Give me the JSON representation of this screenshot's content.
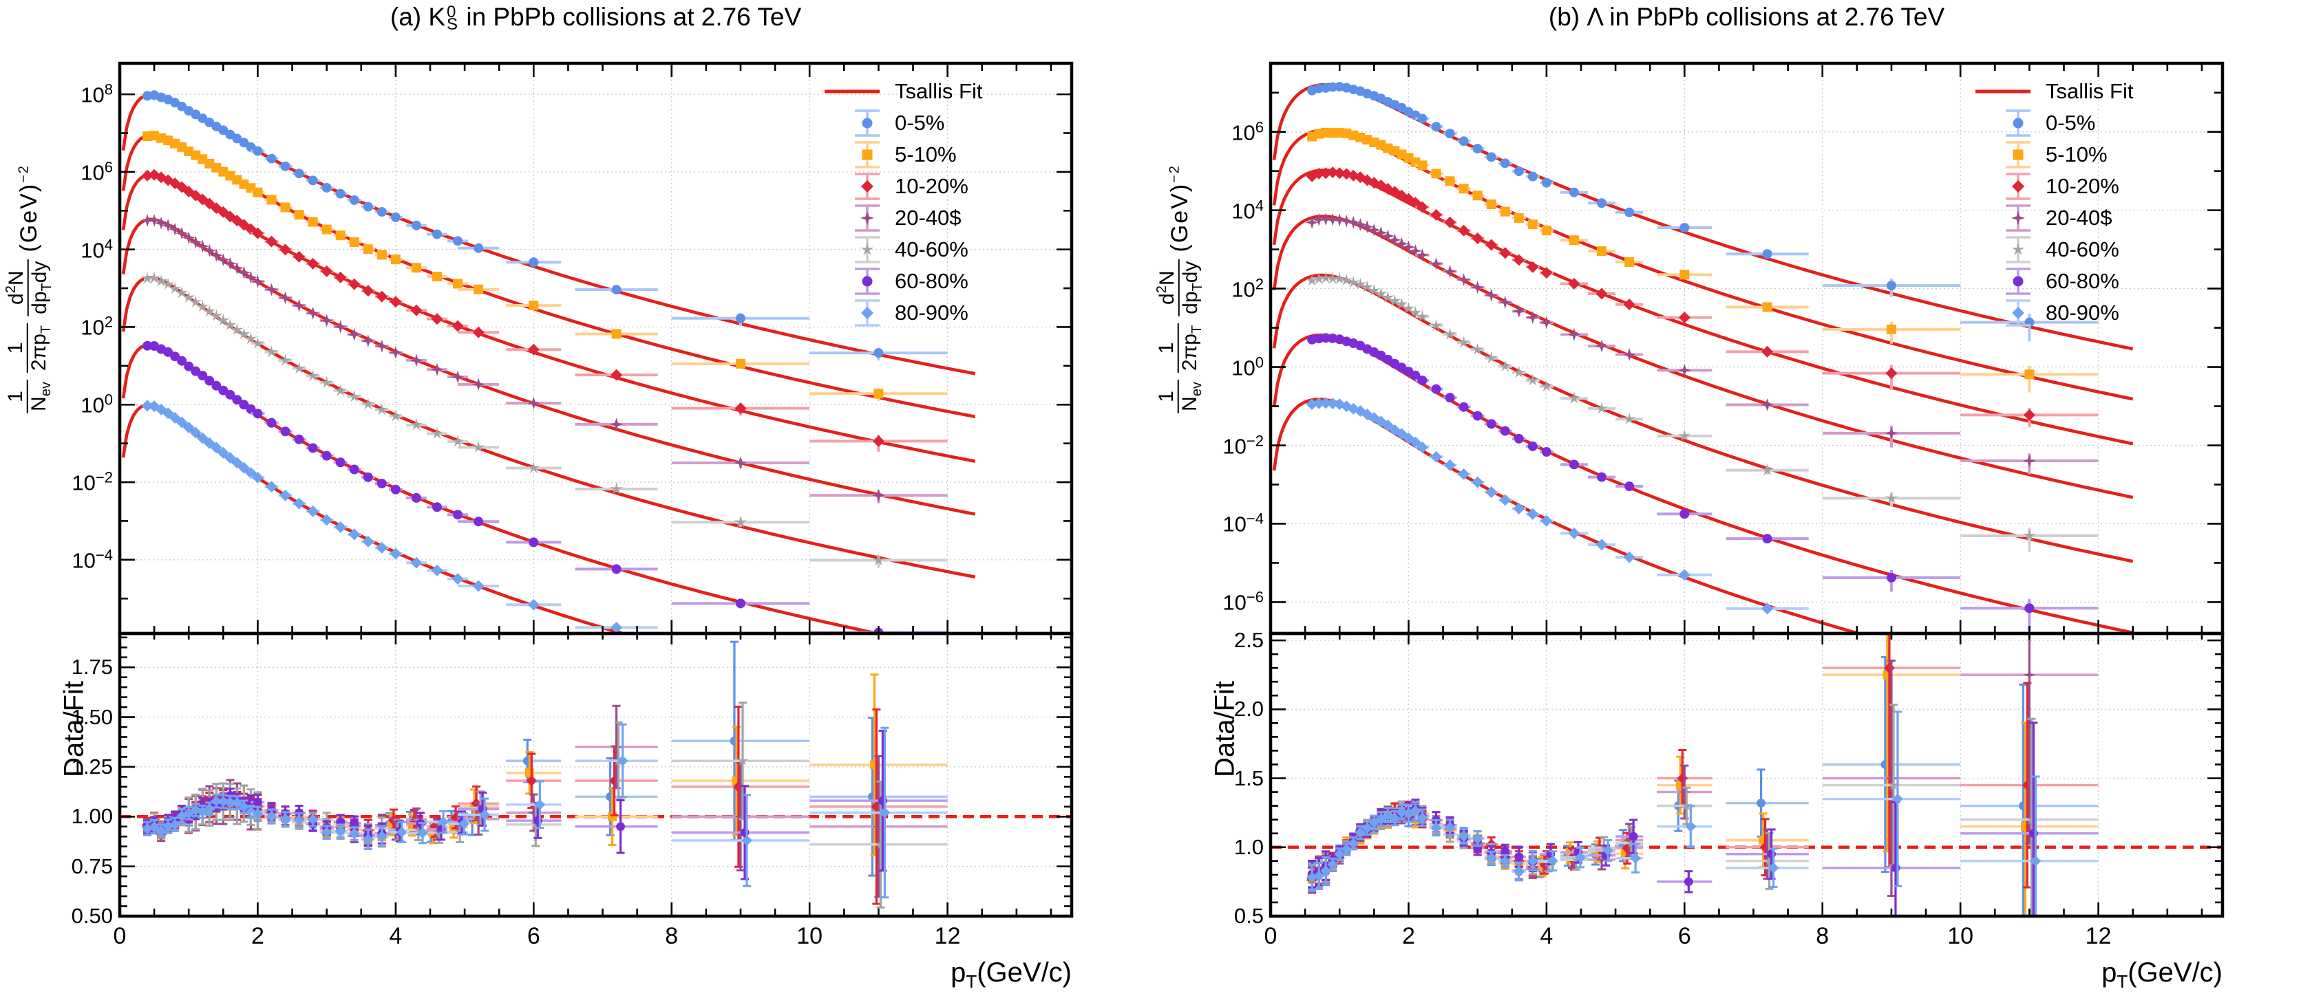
{
  "figure": {
    "background": "#ffffff",
    "fit_color": "#e3211b",
    "grid_color": "#c9c9c9",
    "axis_color": "#000000",
    "ref_line_color": "#e3211b"
  },
  "chart_data": [
    {
      "id": "a",
      "type": "scatter+line",
      "title": {
        "prefix": "(a) K",
        "stack_sup": "0",
        "stack_sub": "S",
        "suffix": " in PbPb collisions at 2.76 TeV"
      },
      "xlabel": {
        "base": "p",
        "sub": "T",
        "suffix": "(GeV/c)"
      },
      "ylabel_tokens": {
        "f1n": "1",
        "f1d": "N",
        "f1dsub": "ev",
        "f2n": "1",
        "f2d": "2πp",
        "f2dsub": "T",
        "f3n": "d",
        "f3nsup": "2",
        "f3nb": "N",
        "f3d": "dp",
        "f3dsub": "T",
        "f3db": "dy",
        "unit": "(GeV)",
        "unitsup": "−2"
      },
      "ratio_ylabel": "Data/Fit",
      "legend_fit_label": "Tsallis Fit",
      "xlim": [
        0,
        13.8
      ],
      "x_major_ticks": [
        0,
        2,
        4,
        6,
        8,
        10,
        12
      ],
      "x_minor_step": 0.5,
      "y_main_log_range": [
        -5.9,
        8.8
      ],
      "y_main_labeled_decades": [
        8,
        6,
        4,
        2,
        0,
        -2,
        -4
      ],
      "y_main_exponent_text": [
        "8",
        "6",
        "4",
        "2",
        "0",
        "−2",
        "−4"
      ],
      "y_ratio": {
        "min": 0.5,
        "max": 1.92,
        "ticks": [
          0.5,
          0.75,
          1.0,
          1.25,
          1.5,
          1.75
        ],
        "tick_labels": [
          "0.50",
          "0.75",
          "1.00",
          "1.25",
          "1.50",
          "1.75"
        ],
        "minor_step": 0.05,
        "ref": 1.0
      },
      "particle_mass": 0.497,
      "rise_scale": 0.42,
      "fit_x_end": 12.4,
      "pt_bins": [
        0.4,
        0.5,
        0.6,
        0.7,
        0.8,
        0.9,
        1.0,
        1.1,
        1.2,
        1.3,
        1.4,
        1.5,
        1.6,
        1.7,
        1.8,
        1.9,
        2.0,
        2.2,
        2.4,
        2.6,
        2.8,
        3.0,
        3.2,
        3.4,
        3.6,
        3.8,
        4.0,
        4.3,
        4.6,
        4.9,
        5.2,
        6.0,
        7.2,
        9.0,
        11.0
      ],
      "pt_halfwidths": [
        0.05,
        0.05,
        0.05,
        0.05,
        0.05,
        0.05,
        0.05,
        0.05,
        0.05,
        0.05,
        0.05,
        0.05,
        0.05,
        0.05,
        0.05,
        0.05,
        0.1,
        0.1,
        0.1,
        0.1,
        0.1,
        0.1,
        0.1,
        0.1,
        0.1,
        0.1,
        0.1,
        0.15,
        0.15,
        0.15,
        0.3,
        0.4,
        0.6,
        1.0,
        1.0
      ],
      "ratio_trend": [
        [
          0.4,
          0.95
        ],
        [
          0.5,
          0.97
        ],
        [
          0.6,
          0.93
        ],
        [
          0.7,
          0.96
        ],
        [
          0.8,
          0.98
        ],
        [
          0.9,
          1.0
        ],
        [
          1.0,
          1.01
        ],
        [
          1.1,
          1.03
        ],
        [
          1.2,
          1.05
        ],
        [
          1.3,
          1.06
        ],
        [
          1.4,
          1.07
        ],
        [
          1.5,
          1.08
        ],
        [
          1.6,
          1.08
        ],
        [
          1.7,
          1.07
        ],
        [
          1.8,
          1.06
        ],
        [
          1.9,
          1.05
        ],
        [
          2.0,
          1.04
        ],
        [
          2.2,
          1.03
        ],
        [
          2.4,
          1.0
        ],
        [
          2.6,
          0.99
        ],
        [
          2.8,
          0.97
        ],
        [
          3.0,
          0.96
        ],
        [
          3.2,
          0.95
        ],
        [
          3.4,
          0.94
        ],
        [
          3.6,
          0.92
        ],
        [
          3.8,
          0.93
        ],
        [
          4.0,
          0.95
        ],
        [
          4.3,
          0.96
        ],
        [
          4.6,
          0.95
        ],
        [
          4.9,
          0.97
        ],
        [
          5.2,
          1.02
        ]
      ],
      "hi_pt_bins": [
        6.0,
        7.2,
        9.0,
        11.0
      ],
      "hi_pt_rel_err": [
        0.1,
        0.15,
        0.28,
        0.38
      ],
      "series": [
        {
          "label": "0-5%",
          "color": "#5c90e8",
          "ecolor": "#a9c6f5",
          "marker": "circle",
          "peak": 100000000.0,
          "T": 0.3,
          "n": 12.0,
          "seed": 11,
          "ratio_hi": [
            1.28,
            1.1,
            1.38,
            1.1
          ]
        },
        {
          "label": "5-10%",
          "color": "#ffa613",
          "ecolor": "#ffd08c",
          "marker": "square",
          "peak": 9000000.0,
          "T": 0.295,
          "n": 12.0,
          "seed": 22,
          "ratio_hi": [
            1.22,
            1.0,
            1.18,
            1.26
          ]
        },
        {
          "label": "10-20%",
          "color": "#e02438",
          "ecolor": "#f2a0aa",
          "marker": "diamond",
          "peak": 860000.0,
          "T": 0.285,
          "n": 12.0,
          "seed": 33,
          "ratio_hi": [
            1.18,
            1.18,
            1.15,
            1.05
          ]
        },
        {
          "label": "20-40$",
          "color": "#9c4a8b",
          "ecolor": "#d29bc9",
          "marker": "star4",
          "peak": 60000.0,
          "T": 0.27,
          "n": 12.0,
          "seed": 44,
          "ratio_hi": [
            1.02,
            1.35,
            1.0,
            0.95
          ]
        },
        {
          "label": "40-60%",
          "color": "#a3a3a3",
          "ecolor": "#cfcfcf",
          "marker": "star5",
          "peak": 1900.0,
          "T": 0.25,
          "n": 11.5,
          "seed": 55,
          "ratio_hi": [
            0.96,
            1.28,
            1.28,
            0.86
          ]
        },
        {
          "label": "60-80%",
          "color": "#7d2bd6",
          "ecolor": "#bd9be8",
          "marker": "circle",
          "peak": 35.0,
          "T": 0.235,
          "n": 11.5,
          "seed": 66,
          "ratio_hi": [
            0.98,
            0.95,
            0.92,
            1.08
          ]
        },
        {
          "label": "80-90%",
          "color": "#6fa3f2",
          "ecolor": "#b3cff7",
          "marker": "diamond",
          "peak": 1.0,
          "T": 0.22,
          "n": 11.0,
          "seed": 77,
          "ratio_hi": [
            1.06,
            1.28,
            0.88,
            1.02
          ]
        }
      ]
    },
    {
      "id": "b",
      "type": "scatter+line",
      "title": {
        "prefix": "(b) Λ",
        "stack_sup": "",
        "stack_sub": "",
        "suffix": " in PbPb collisions at 2.76 TeV"
      },
      "xlabel": {
        "base": "p",
        "sub": "T",
        "suffix": "(GeV/c)"
      },
      "ylabel_tokens": {
        "f1n": "1",
        "f1d": "N",
        "f1dsub": "ev",
        "f2n": "1",
        "f2d": "2πp",
        "f2dsub": "T",
        "f3n": "d",
        "f3nsup": "2",
        "f3nb": "N",
        "f3d": "dp",
        "f3dsub": "T",
        "f3db": "dy",
        "unit": "(GeV)",
        "unitsup": "−2"
      },
      "ratio_ylabel": "Data/Fit",
      "legend_fit_label": "Tsallis Fit",
      "xlim": [
        0,
        13.8
      ],
      "x_major_ticks": [
        0,
        2,
        4,
        6,
        8,
        10,
        12
      ],
      "x_minor_step": 0.5,
      "y_main_log_range": [
        -6.8,
        7.75
      ],
      "y_main_labeled_decades": [
        6,
        4,
        2,
        0,
        -2,
        -4,
        -6
      ],
      "y_main_exponent_text": [
        "6",
        "4",
        "2",
        "0",
        "−2",
        "−4",
        "−6"
      ],
      "y_ratio": {
        "min": 0.5,
        "max": 2.55,
        "ticks": [
          0.5,
          1.0,
          1.5,
          2.0,
          2.5
        ],
        "tick_labels": [
          "0.5",
          "1.0",
          "1.5",
          "2.0",
          "2.5"
        ],
        "minor_step": 0.1,
        "ref": 1.0
      },
      "particle_mass": 1.116,
      "rise_scale": 0.9,
      "fit_x_end": 12.5,
      "pt_bins": [
        0.6,
        0.7,
        0.8,
        0.9,
        1.0,
        1.1,
        1.2,
        1.3,
        1.4,
        1.5,
        1.6,
        1.7,
        1.8,
        1.9,
        2.0,
        2.1,
        2.2,
        2.4,
        2.6,
        2.8,
        3.0,
        3.2,
        3.4,
        3.6,
        3.8,
        4.0,
        4.4,
        4.8,
        5.2,
        6.0,
        7.2,
        9.0,
        11.0
      ],
      "pt_halfwidths": [
        0.05,
        0.05,
        0.05,
        0.05,
        0.05,
        0.05,
        0.05,
        0.05,
        0.05,
        0.05,
        0.05,
        0.05,
        0.05,
        0.05,
        0.05,
        0.05,
        0.1,
        0.1,
        0.1,
        0.1,
        0.1,
        0.1,
        0.1,
        0.1,
        0.1,
        0.1,
        0.2,
        0.2,
        0.2,
        0.4,
        0.6,
        1.0,
        1.0
      ],
      "ratio_trend": [
        [
          0.6,
          0.78
        ],
        [
          0.7,
          0.82
        ],
        [
          0.8,
          0.85
        ],
        [
          0.9,
          0.9
        ],
        [
          1.0,
          0.95
        ],
        [
          1.1,
          1.0
        ],
        [
          1.2,
          1.05
        ],
        [
          1.3,
          1.1
        ],
        [
          1.4,
          1.14
        ],
        [
          1.5,
          1.17
        ],
        [
          1.6,
          1.2
        ],
        [
          1.7,
          1.22
        ],
        [
          1.8,
          1.24
        ],
        [
          1.9,
          1.25
        ],
        [
          2.0,
          1.25
        ],
        [
          2.1,
          1.24
        ],
        [
          2.2,
          1.22
        ],
        [
          2.4,
          1.18
        ],
        [
          2.6,
          1.12
        ],
        [
          2.8,
          1.07
        ],
        [
          3.0,
          1.02
        ],
        [
          3.2,
          0.97
        ],
        [
          3.4,
          0.92
        ],
        [
          3.6,
          0.88
        ],
        [
          3.8,
          0.88
        ],
        [
          4.0,
          0.9
        ],
        [
          4.4,
          0.92
        ],
        [
          4.8,
          0.95
        ],
        [
          5.2,
          1.0
        ]
      ],
      "hi_pt_bins": [
        6.0,
        7.2,
        9.0,
        11.0
      ],
      "hi_pt_rel_err": [
        0.12,
        0.2,
        0.5,
        0.6
      ],
      "series": [
        {
          "label": "0-5%",
          "color": "#5c90e8",
          "ecolor": "#a9c6f5",
          "marker": "circle",
          "peak": 16000000.0,
          "T": 0.33,
          "n": 13.0,
          "seed": 111,
          "ratio_hi": [
            1.3,
            1.32,
            1.6,
            1.3
          ]
        },
        {
          "label": "5-10%",
          "color": "#ffa613",
          "ecolor": "#ffd08c",
          "marker": "square",
          "peak": 1100000.0,
          "T": 0.32,
          "n": 13.0,
          "seed": 222,
          "ratio_hi": [
            1.45,
            1.05,
            2.25,
            1.15
          ]
        },
        {
          "label": "10-20%",
          "color": "#e02438",
          "ecolor": "#f2a0aa",
          "marker": "diamond",
          "peak": 105000.0,
          "T": 0.31,
          "n": 13.0,
          "seed": 333,
          "ratio_hi": [
            1.5,
            1.0,
            2.3,
            1.45
          ]
        },
        {
          "label": "20-40$",
          "color": "#9c4a8b",
          "ecolor": "#d29bc9",
          "marker": "star4",
          "peak": 7000.0,
          "T": 0.295,
          "n": 13.0,
          "seed": 444,
          "ratio_hi": [
            1.4,
            0.95,
            1.5,
            2.25
          ]
        },
        {
          "label": "40-60%",
          "color": "#a3a3a3",
          "ecolor": "#cfcfcf",
          "marker": "star5",
          "peak": 220.0,
          "T": 0.275,
          "n": 12.5,
          "seed": 555,
          "ratio_hi": [
            1.3,
            0.9,
            1.45,
            1.2
          ]
        },
        {
          "label": "60-80%",
          "color": "#7d2bd6",
          "ecolor": "#bd9be8",
          "marker": "circle",
          "peak": 6.5,
          "T": 0.255,
          "n": 12.5,
          "seed": 666,
          "ratio_hi": [
            0.75,
            0.95,
            0.85,
            1.1
          ]
        },
        {
          "label": "80-90%",
          "color": "#6fa3f2",
          "ecolor": "#b3cff7",
          "marker": "diamond",
          "peak": 0.15,
          "T": 0.24,
          "n": 12.0,
          "seed": 777,
          "ratio_hi": [
            1.15,
            0.85,
            1.35,
            0.9
          ]
        }
      ]
    }
  ],
  "layout_note": ""
}
